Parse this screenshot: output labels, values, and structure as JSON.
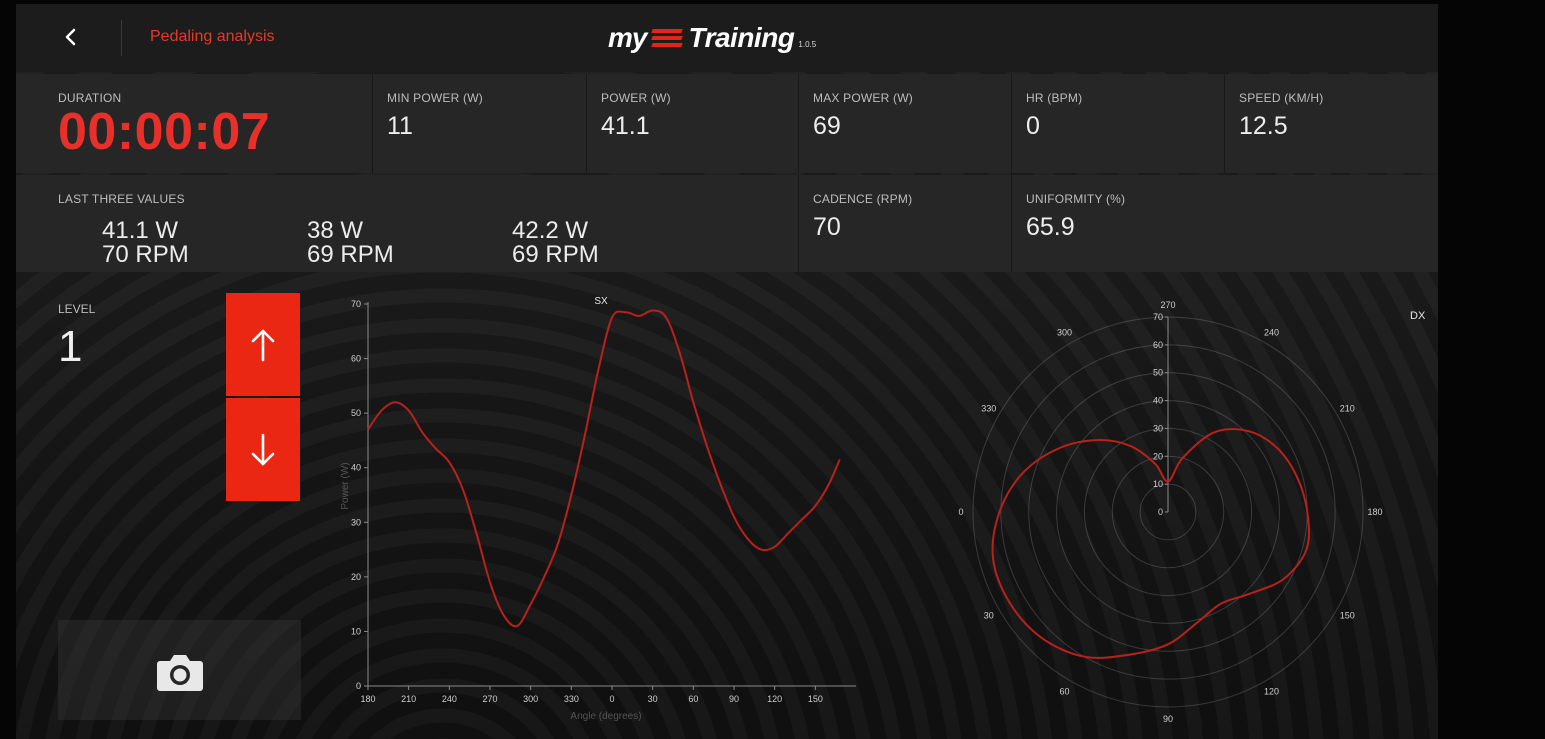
{
  "header": {
    "title": "Pedaling analysis",
    "logo_my": "my",
    "logo_training": "Training",
    "version": "1.0.5"
  },
  "stats": {
    "duration": {
      "label": "DURATION",
      "value": "00:00:07"
    },
    "min_power": {
      "label": "MIN POWER (W)",
      "value": "11"
    },
    "power": {
      "label": "POWER (W)",
      "value": "41.1"
    },
    "max_power": {
      "label": "MAX POWER (W)",
      "value": "69"
    },
    "hr": {
      "label": "HR (BPM)",
      "value": "0"
    },
    "speed": {
      "label": "SPEED (KM/H)",
      "value": "12.5"
    },
    "last_three": {
      "label": "LAST THREE VALUES",
      "items": [
        {
          "watts": "41.1 W",
          "rpm": "70 RPM"
        },
        {
          "watts": "38 W",
          "rpm": "69 RPM"
        },
        {
          "watts": "42.2 W",
          "rpm": "69 RPM"
        }
      ]
    },
    "cadence": {
      "label": "CADENCE (RPM)",
      "value": "70"
    },
    "uniformity": {
      "label": "UNIFORMITY (%)",
      "value": "65.9"
    }
  },
  "level": {
    "label": "LEVEL",
    "value": "1"
  },
  "icons": {
    "back": "chevron-left-icon",
    "up": "arrow-up-icon",
    "down": "arrow-down-icon",
    "camera": "camera-icon"
  },
  "colors": {
    "accent": "#e8302a",
    "button": "#ea2712",
    "curve": "#b8211c"
  },
  "chart_data": [
    {
      "type": "line",
      "title": "SX",
      "xlabel": "Angle (degrees)",
      "ylabel": "Power (W)",
      "ylim": [
        0,
        70
      ],
      "yticks": [
        0,
        10,
        20,
        30,
        40,
        50,
        60,
        70
      ],
      "xtick_labels": [
        "180",
        "210",
        "240",
        "270",
        "300",
        "330",
        "0",
        "30",
        "60",
        "90",
        "120",
        "150"
      ],
      "series": [
        {
          "x": [
            180,
            190,
            200,
            210,
            220,
            230,
            240,
            250,
            260,
            270,
            280,
            290,
            300,
            310,
            320,
            330,
            340,
            350,
            360,
            370,
            380,
            390,
            400,
            410,
            420,
            430,
            440,
            450,
            460,
            470,
            480,
            490,
            500,
            510,
            520,
            528
          ],
          "values": [
            47,
            50.5,
            52,
            50.5,
            46.5,
            43.5,
            41,
            36,
            28,
            19,
            13,
            11,
            15,
            20,
            26,
            35,
            46,
            58,
            67.5,
            68.5,
            67.8,
            68.8,
            67.5,
            61,
            52,
            44,
            37,
            31,
            27,
            25,
            25.5,
            28,
            30.5,
            33,
            37,
            41.5
          ]
        }
      ]
    },
    {
      "type": "polar",
      "title": "SX",
      "title_right": "DX",
      "rlim": [
        0,
        70
      ],
      "rticks": [
        0,
        10,
        20,
        30,
        40,
        50,
        60,
        70
      ],
      "angle_labels": [
        "270",
        "240",
        "210",
        "180",
        "150",
        "120",
        "90",
        "60",
        "30",
        "0",
        "330",
        "300"
      ],
      "series": [
        {
          "angles": [
            270,
            255,
            240,
            225,
            210,
            195,
            180,
            165,
            150,
            135,
            120,
            105,
            90,
            75,
            60,
            45,
            30,
            15,
            0,
            345,
            330,
            315,
            300,
            285
          ],
          "values": [
            11,
            20,
            33,
            41,
            45.5,
            48,
            50,
            51.5,
            48,
            41.5,
            38,
            41,
            47.5,
            53,
            60,
            64,
            65.5,
            65,
            60.5,
            54,
            45.5,
            36.5,
            27.5,
            18
          ]
        }
      ]
    }
  ]
}
